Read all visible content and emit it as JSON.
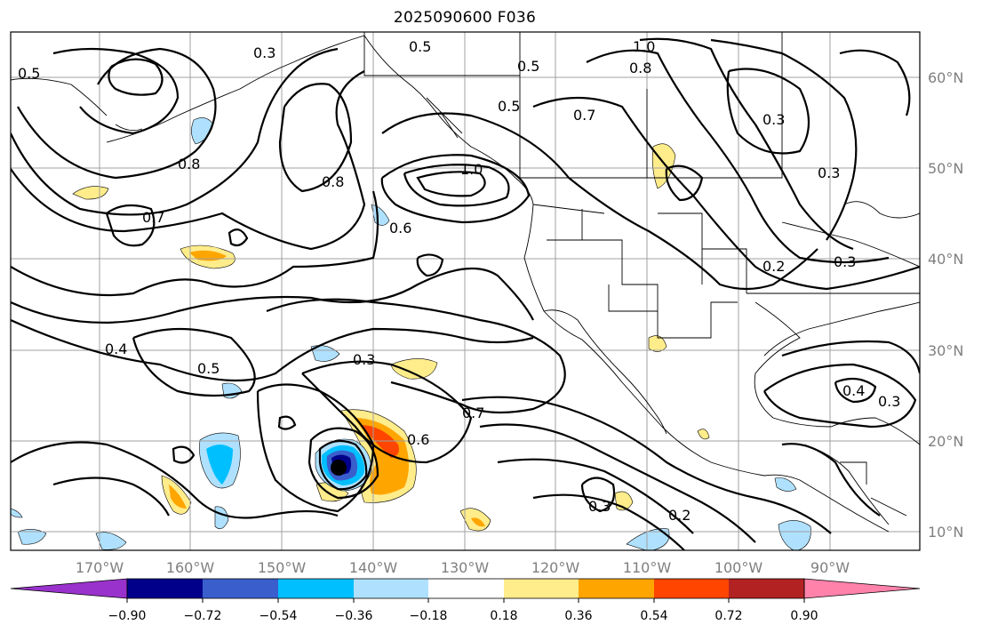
{
  "title": "2025090600 F036",
  "lon_labels": [
    "170°W",
    "160°W",
    "150°W",
    "140°W",
    "130°W",
    "120°W",
    "110°W",
    "100°W",
    "90°W"
  ],
  "lat_labels": [
    "60°N",
    "50°N",
    "40°N",
    "30°N",
    "20°N",
    "10°N"
  ],
  "colorbar": {
    "colors": [
      "#9932cc",
      "#00008b",
      "#3a5fcd",
      "#00bfff",
      "#afe1ff",
      "#ffffff",
      "#ffec8b",
      "#ffa500",
      "#ff4500",
      "#b22222",
      "#ff82ab"
    ],
    "tick_labels": [
      "−0.90",
      "−0.72",
      "−0.54",
      "−0.36",
      "−0.18",
      "0.18",
      "0.36",
      "0.54",
      "0.72",
      "0.90"
    ]
  },
  "contour_labels": [
    "0.5",
    "0.3",
    "1.0",
    "0.5",
    "0.5",
    "0.8",
    "0.7",
    "0.3",
    "0.8",
    "0.8",
    "1.0",
    "0.6",
    "0.7",
    "0.5",
    "0.3",
    "0.3",
    "0.2",
    "0.4",
    "0.5",
    "0.3",
    "0.7",
    "0.6",
    "0.4",
    "0.3",
    "0.3",
    "0.2"
  ],
  "map_colors": {
    "land_line": "#000000",
    "grid": "#a0a0a0",
    "contour": "#000000",
    "center_marker": "#000000"
  }
}
